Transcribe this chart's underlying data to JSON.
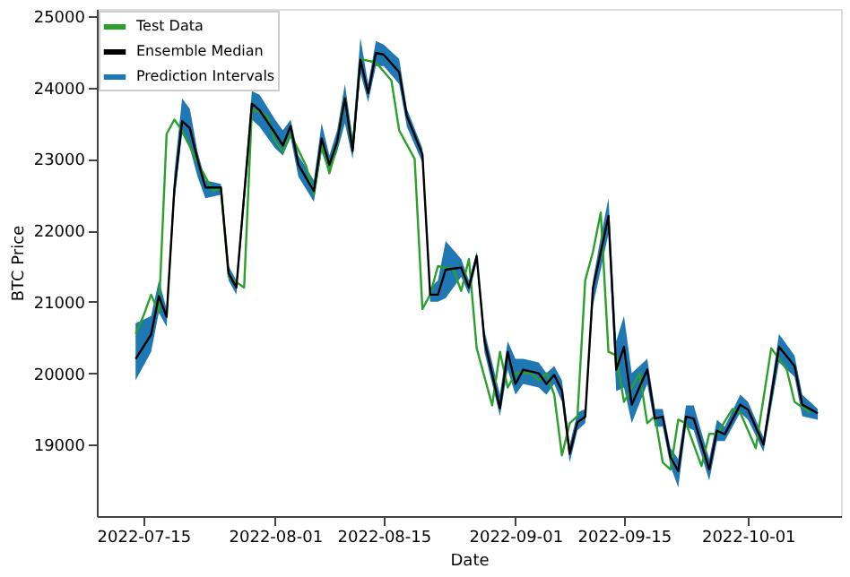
{
  "chart_data": {
    "type": "line",
    "xlabel": "Date",
    "ylabel": "BTC Price",
    "xlim": [
      "2022-07-09",
      "2022-10-13"
    ],
    "ylim": [
      18000,
      25100
    ],
    "yticks": [
      19000,
      20000,
      21000,
      22000,
      23000,
      24000,
      25000
    ],
    "xticks": [
      {
        "value": "2022-07-15",
        "label": "2022-07-15"
      },
      {
        "value": "2022-08-01",
        "label": "2022-08-01"
      },
      {
        "value": "2022-08-15",
        "label": "2022-08-15"
      },
      {
        "value": "2022-09-01",
        "label": "2022-09-01"
      },
      {
        "value": "2022-09-15",
        "label": "2022-09-15"
      },
      {
        "value": "2022-10-01",
        "label": "2022-10-01"
      }
    ],
    "grid": false,
    "legend": "top left",
    "series": [
      {
        "name": "Test Data",
        "color": "#2ca02c",
        "x": [
          "2022-07-14",
          "2022-07-15",
          "2022-07-16",
          "2022-07-17",
          "2022-07-18",
          "2022-07-19",
          "2022-07-20",
          "2022-07-22",
          "2022-07-24",
          "2022-07-25",
          "2022-07-26",
          "2022-07-28",
          "2022-07-29",
          "2022-07-31",
          "2022-08-01",
          "2022-08-02",
          "2022-08-03",
          "2022-08-05",
          "2022-08-06",
          "2022-08-07",
          "2022-08-08",
          "2022-08-09",
          "2022-08-10",
          "2022-08-11",
          "2022-08-12",
          "2022-08-14",
          "2022-08-16",
          "2022-08-17",
          "2022-08-19",
          "2022-08-20",
          "2022-08-21",
          "2022-08-22",
          "2022-08-24",
          "2022-08-25",
          "2022-08-26",
          "2022-08-27",
          "2022-08-29",
          "2022-08-30",
          "2022-08-31",
          "2022-09-01",
          "2022-09-03",
          "2022-09-04",
          "2022-09-05",
          "2022-09-06",
          "2022-09-07",
          "2022-09-08",
          "2022-09-09",
          "2022-09-10",
          "2022-09-11",
          "2022-09-12",
          "2022-09-13",
          "2022-09-14",
          "2022-09-15",
          "2022-09-17",
          "2022-09-18",
          "2022-09-19",
          "2022-09-20",
          "2022-09-21",
          "2022-09-22",
          "2022-09-23",
          "2022-09-25",
          "2022-09-26",
          "2022-09-27",
          "2022-09-29",
          "2022-09-30",
          "2022-10-02",
          "2022-10-04",
          "2022-10-06",
          "2022-10-07",
          "2022-10-09"
        ],
        "values": [
          20550,
          20800,
          21100,
          20850,
          23350,
          23550,
          23400,
          22950,
          22550,
          22600,
          21350,
          21200,
          23700,
          23600,
          23250,
          23100,
          23350,
          22900,
          22500,
          23200,
          22800,
          23200,
          23850,
          23150,
          24400,
          24350,
          24100,
          23400,
          23000,
          20900,
          21100,
          21500,
          21450,
          21150,
          21600,
          20350,
          19550,
          20300,
          19800,
          20000,
          20000,
          19900,
          20000,
          19700,
          18850,
          19300,
          19400,
          21300,
          21700,
          22250,
          20300,
          20250,
          19600,
          20000,
          19300,
          19400,
          18750,
          18650,
          19350,
          19300,
          18700,
          19150,
          19150,
          19500,
          19450,
          18950,
          20350,
          20050,
          19600,
          19450
        ]
      },
      {
        "name": "Ensemble Median",
        "color": "#000000",
        "x": [
          "2022-07-14",
          "2022-07-16",
          "2022-07-17",
          "2022-07-18",
          "2022-07-19",
          "2022-07-20",
          "2022-07-21",
          "2022-07-22",
          "2022-07-23",
          "2022-07-25",
          "2022-07-26",
          "2022-07-27",
          "2022-07-29",
          "2022-07-30",
          "2022-08-01",
          "2022-08-02",
          "2022-08-03",
          "2022-08-04",
          "2022-08-06",
          "2022-08-07",
          "2022-08-08",
          "2022-08-09",
          "2022-08-10",
          "2022-08-11",
          "2022-08-12",
          "2022-08-13",
          "2022-08-14",
          "2022-08-15",
          "2022-08-17",
          "2022-08-18",
          "2022-08-20",
          "2022-08-21",
          "2022-08-22",
          "2022-08-23",
          "2022-08-25",
          "2022-08-26",
          "2022-08-27",
          "2022-08-28",
          "2022-08-30",
          "2022-08-31",
          "2022-09-01",
          "2022-09-02",
          "2022-09-04",
          "2022-09-05",
          "2022-09-06",
          "2022-09-07",
          "2022-09-08",
          "2022-09-09",
          "2022-09-10",
          "2022-09-11",
          "2022-09-12",
          "2022-09-13",
          "2022-09-14",
          "2022-09-15",
          "2022-09-16",
          "2022-09-18",
          "2022-09-19",
          "2022-09-20",
          "2022-09-21",
          "2022-09-22",
          "2022-09-23",
          "2022-09-24",
          "2022-09-26",
          "2022-09-27",
          "2022-09-28",
          "2022-09-30",
          "2022-10-01",
          "2022-10-03",
          "2022-10-05",
          "2022-10-07",
          "2022-10-08",
          "2022-10-10"
        ],
        "values": [
          20200,
          20540,
          21080,
          20790,
          22575,
          23530,
          23430,
          22990,
          22600,
          22600,
          21400,
          21200,
          23775,
          23680,
          23360,
          23190,
          23460,
          22920,
          22550,
          23285,
          22920,
          23240,
          23850,
          23110,
          24390,
          23920,
          24485,
          24460,
          24215,
          23600,
          23065,
          21100,
          21100,
          21450,
          21480,
          21200,
          21640,
          20460,
          19510,
          20300,
          19850,
          20050,
          20000,
          19850,
          19975,
          19755,
          18875,
          19315,
          19390,
          21200,
          21690,
          22200,
          20050,
          20370,
          19560,
          20050,
          19365,
          19390,
          18825,
          18630,
          19390,
          19365,
          18655,
          19195,
          19145,
          19560,
          19490,
          19000,
          20370,
          20100,
          19560,
          19440
        ],
        "lower": [
          19900,
          20300,
          20850,
          20650,
          22400,
          23350,
          23150,
          22750,
          22450,
          22500,
          21300,
          21100,
          23550,
          23450,
          23150,
          23050,
          23300,
          22750,
          22400,
          23100,
          22800,
          23100,
          23500,
          23000,
          24200,
          23800,
          24300,
          24300,
          24050,
          23450,
          22950,
          21000,
          21000,
          21050,
          21350,
          21100,
          21550,
          20300,
          19400,
          20050,
          19700,
          19850,
          19800,
          19700,
          19850,
          19600,
          18750,
          19200,
          19300,
          20950,
          21450,
          21950,
          19750,
          19800,
          19300,
          19850,
          19250,
          19250,
          18700,
          18400,
          19250,
          19200,
          18500,
          19050,
          19050,
          19450,
          19350,
          18900,
          20150,
          19950,
          19400,
          19350
        ],
        "upper": [
          20700,
          20800,
          21300,
          20900,
          22800,
          23850,
          23700,
          23100,
          22700,
          22650,
          21500,
          21300,
          23950,
          23900,
          23550,
          23400,
          23550,
          23050,
          22700,
          23500,
          23050,
          23400,
          24050,
          23300,
          24700,
          24050,
          24650,
          24600,
          24400,
          23700,
          23150,
          21200,
          21300,
          21850,
          21600,
          21300,
          21700,
          20600,
          19700,
          20450,
          20200,
          20200,
          20150,
          20000,
          20100,
          19900,
          19000,
          19450,
          19500,
          21300,
          21900,
          22450,
          20450,
          20800,
          20000,
          20200,
          19500,
          19500,
          18950,
          18800,
          19550,
          19550,
          18800,
          19350,
          19250,
          19700,
          19600,
          19100,
          20550,
          20250,
          19700,
          19500
        ]
      },
      {
        "name": "Prediction Intervals",
        "color": "#1f77b4",
        "type": "area"
      }
    ]
  }
}
